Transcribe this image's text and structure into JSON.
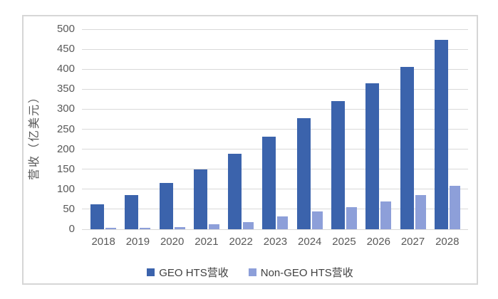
{
  "chart_data": {
    "type": "bar",
    "title": "",
    "xlabel": "",
    "ylabel": "营收（亿美元）",
    "categories": [
      "2018",
      "2019",
      "2020",
      "2021",
      "2022",
      "2023",
      "2024",
      "2025",
      "2026",
      "2027",
      "2028"
    ],
    "series": [
      {
        "name": "GEO HTS营收",
        "color": "#3B63AC",
        "values": [
          62,
          85,
          115,
          150,
          189,
          232,
          277,
          321,
          365,
          406,
          474
        ]
      },
      {
        "name": "Non-GEO HTS营收",
        "color": "#8D9FD9",
        "values": [
          3,
          4,
          6,
          12,
          18,
          32,
          44,
          56,
          70,
          85,
          108
        ]
      }
    ],
    "y_ticks": [
      0,
      50,
      100,
      150,
      200,
      250,
      300,
      350,
      400,
      450,
      500
    ],
    "ylim": [
      0,
      500
    ],
    "grid": true,
    "legend_position": "bottom"
  },
  "styles": {
    "grid_color": "#d9d9d9",
    "axis_text_color": "#595959",
    "frame_border_color": "#d6d6d6",
    "background": "#ffffff"
  }
}
